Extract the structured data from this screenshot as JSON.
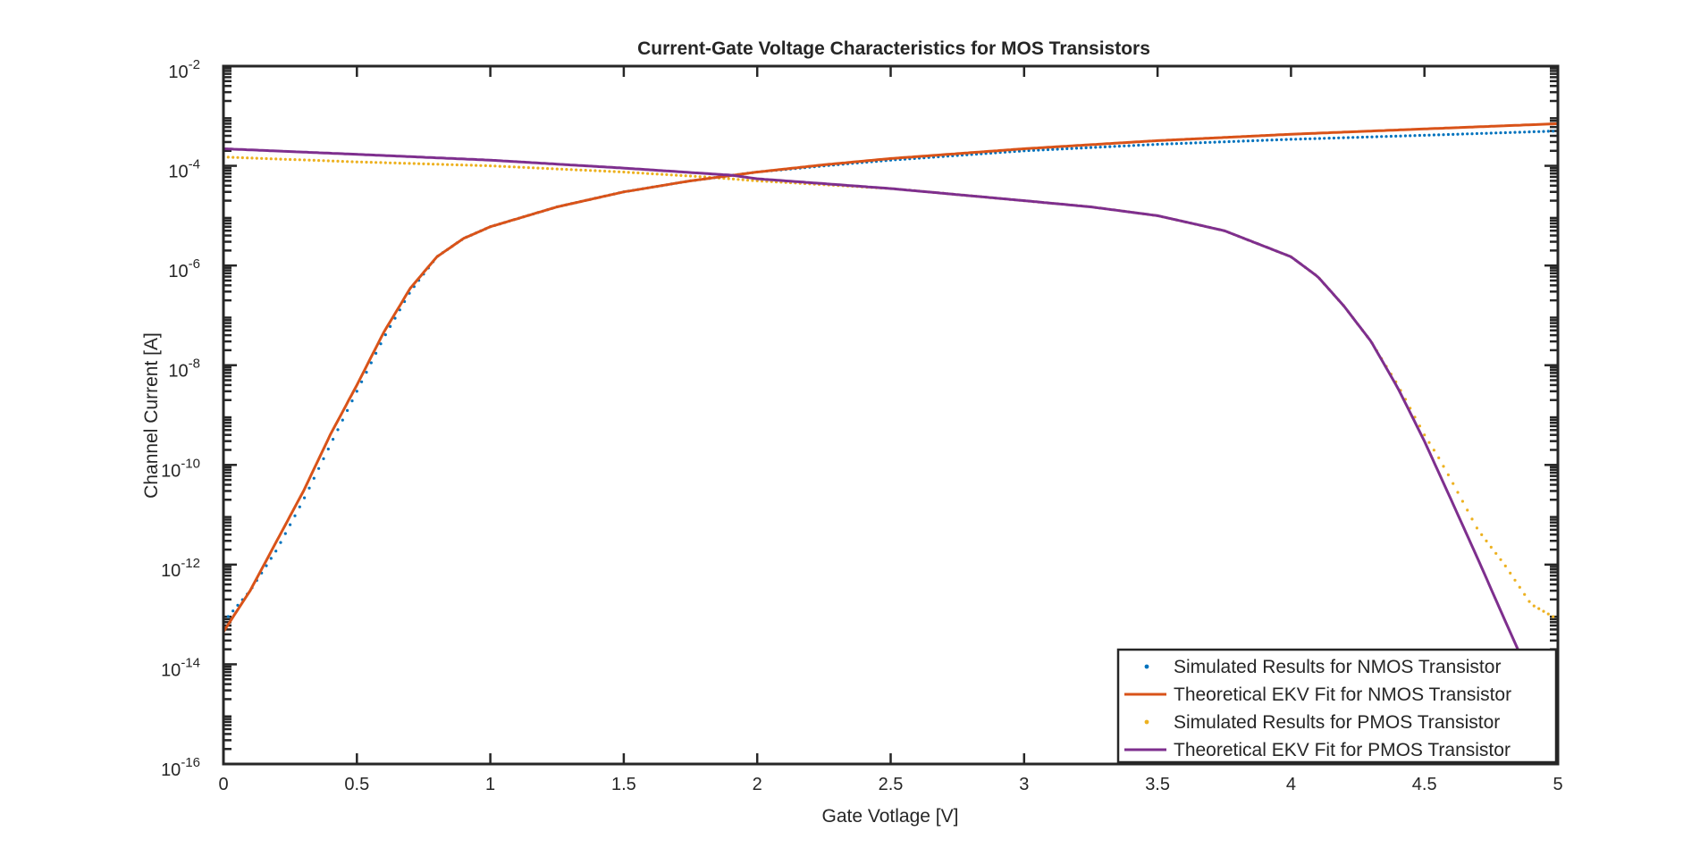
{
  "chart_data": {
    "type": "line",
    "title": "Current-Gate Voltage Characteristics for MOS Transistors",
    "xlabel": "Gate Votlage [V]",
    "ylabel": "Channel Current [A]",
    "xlim": [
      0,
      5
    ],
    "ylim": [
      1e-16,
      0.01
    ],
    "yscale": "log",
    "grid": false,
    "legend_position": "bottom-right",
    "x_ticks": [
      "0",
      "0.5",
      "1",
      "1.5",
      "2",
      "2.5",
      "3",
      "3.5",
      "4",
      "4.5",
      "5"
    ],
    "y_ticks": [
      {
        "base": "10",
        "exp": "-16"
      },
      {
        "base": "10",
        "exp": "-14"
      },
      {
        "base": "10",
        "exp": "-12"
      },
      {
        "base": "10",
        "exp": "-10"
      },
      {
        "base": "10",
        "exp": "-8"
      },
      {
        "base": "10",
        "exp": "-6"
      },
      {
        "base": "10",
        "exp": "-4"
      },
      {
        "base": "10",
        "exp": "-2"
      }
    ],
    "series": [
      {
        "name": "Simulated Results for NMOS Transistor",
        "style": "dots",
        "color": "#0072BD",
        "x": [
          0,
          0.1,
          0.2,
          0.3,
          0.4,
          0.5,
          0.6,
          0.7,
          0.8,
          0.9,
          1.0,
          1.25,
          1.5,
          1.75,
          2.0,
          2.25,
          2.5,
          3.0,
          3.5,
          4.0,
          4.5,
          5.0
        ],
        "y": [
          7e-14,
          3e-13,
          2e-12,
          2e-11,
          2.5e-10,
          3e-09,
          3.5e-08,
          3e-07,
          1.5e-06,
          3.5e-06,
          6e-06,
          1.5e-05,
          3e-05,
          5e-05,
          7.5e-05,
          0.0001,
          0.00013,
          0.0002,
          0.00027,
          0.00034,
          0.00041,
          0.0005
        ]
      },
      {
        "name": "Theoretical EKV Fit for NMOS Transistor",
        "style": "line",
        "color": "#D95319",
        "x": [
          0,
          0.1,
          0.2,
          0.3,
          0.4,
          0.5,
          0.6,
          0.7,
          0.8,
          0.9,
          1.0,
          1.25,
          1.5,
          1.75,
          2.0,
          2.25,
          2.5,
          3.0,
          3.5,
          4.0,
          4.5,
          5.0
        ],
        "y": [
          4.5e-14,
          3e-13,
          3e-12,
          3e-11,
          4e-10,
          4e-09,
          4.5e-08,
          3.5e-07,
          1.5e-06,
          3.5e-06,
          6e-06,
          1.5e-05,
          3e-05,
          5e-05,
          7.5e-05,
          0.000105,
          0.00014,
          0.00022,
          0.00032,
          0.00043,
          0.00055,
          0.0007
        ]
      },
      {
        "name": "Simulated Results for PMOS Transistor",
        "style": "dots",
        "color": "#EDB120",
        "x": [
          0,
          0.5,
          1.0,
          1.5,
          1.8,
          2.0,
          2.5,
          3.0,
          3.25,
          3.5,
          3.75,
          4.0,
          4.1,
          4.2,
          4.3,
          4.4,
          4.5,
          4.55,
          4.6,
          4.7,
          4.8,
          4.9,
          5.0
        ],
        "y": [
          0.00015,
          0.00012,
          0.0001,
          7.5e-05,
          6e-05,
          5e-05,
          3.5e-05,
          2e-05,
          1.5e-05,
          1e-05,
          5e-06,
          1.5e-06,
          6e-07,
          1.5e-07,
          3e-08,
          4e-09,
          4e-10,
          1.5e-10,
          5e-11,
          5e-12,
          1e-12,
          1.6e-13,
          8e-14
        ]
      },
      {
        "name": "Theoretical EKV Fit for PMOS Transistor",
        "style": "line",
        "color": "#7E2F8E",
        "x": [
          0,
          0.5,
          1.0,
          1.5,
          1.9,
          2.0,
          2.5,
          3.0,
          3.25,
          3.5,
          3.75,
          4.0,
          4.1,
          4.2,
          4.3,
          4.4,
          4.5,
          4.6,
          4.7,
          4.8,
          4.85
        ],
        "y": [
          0.00022,
          0.00017,
          0.00013,
          9e-05,
          6.5e-05,
          5.5e-05,
          3.5e-05,
          2e-05,
          1.5e-05,
          1e-05,
          5e-06,
          1.5e-06,
          6e-07,
          1.5e-07,
          3e-08,
          3.5e-09,
          3e-10,
          2e-11,
          1.3e-12,
          8e-14,
          2e-14
        ]
      }
    ]
  }
}
